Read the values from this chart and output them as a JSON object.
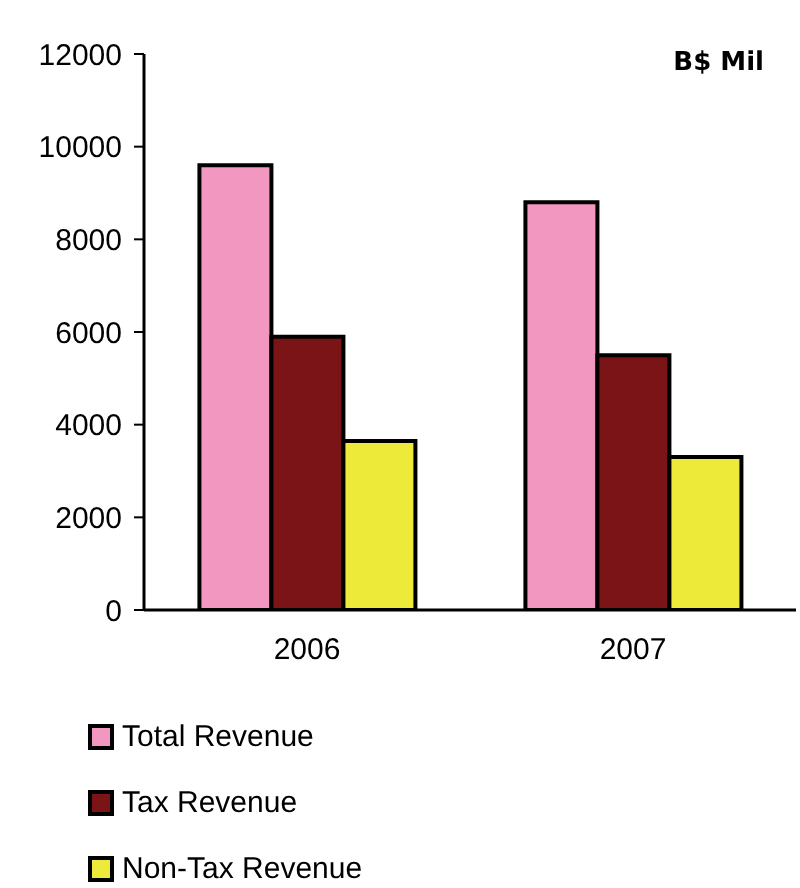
{
  "chart_data": {
    "type": "bar",
    "annotations": [
      "B$ Mil"
    ],
    "categories": [
      "2006",
      "2007"
    ],
    "series": [
      {
        "name": "Total Revenue",
        "color": "#f298c0",
        "values": [
          9600,
          8800
        ]
      },
      {
        "name": "Tax Revenue",
        "color": "#7b1416",
        "values": [
          5900,
          5500
        ]
      },
      {
        "name": "Non-Tax Revenue",
        "color": "#eeea3a",
        "values": [
          3650,
          3300
        ]
      }
    ],
    "ylim": [
      0,
      12000
    ],
    "yticks": [
      0,
      2000,
      4000,
      6000,
      8000,
      10000,
      12000
    ],
    "grid": false,
    "legend": "bottom"
  }
}
